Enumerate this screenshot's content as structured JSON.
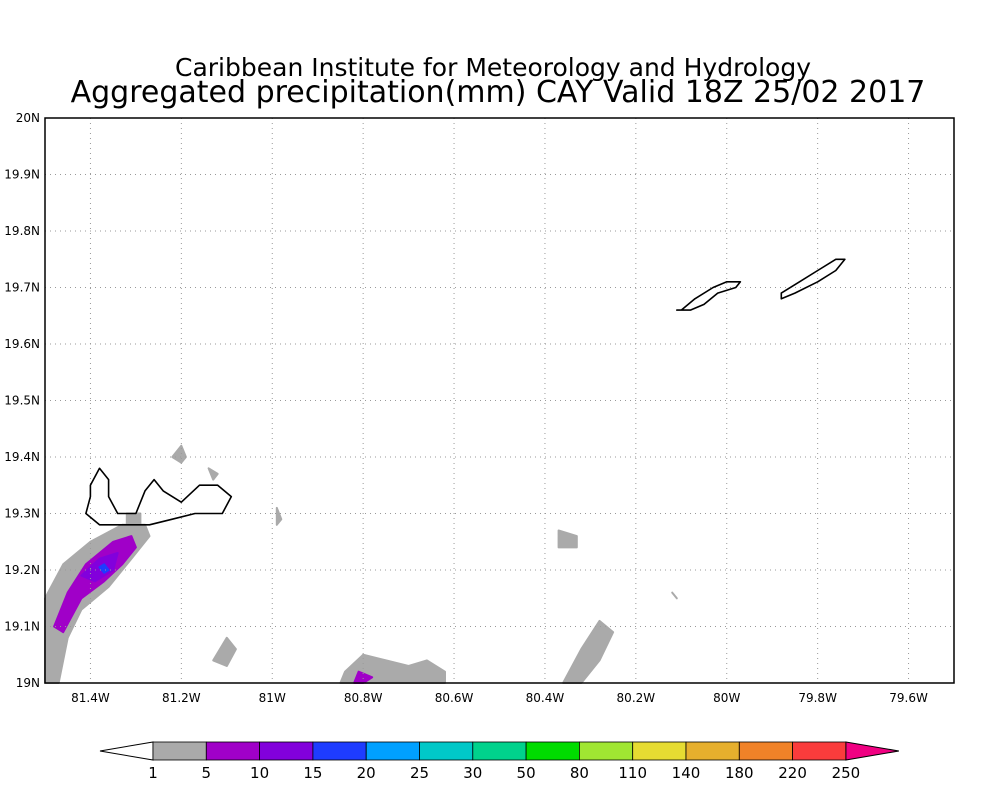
{
  "title": {
    "line1": "Caribbean Institute for Meteorology and Hydrology",
    "line2": "Aggregated precipitation(mm) CAY Valid 18Z 25/02 2017"
  },
  "map": {
    "lon_range": [
      -81.5,
      -79.5
    ],
    "lat_range": [
      19.0,
      20.0
    ],
    "grid": "dotted",
    "lat_ticks": [
      {
        "value": 19.0,
        "label": "19N"
      },
      {
        "value": 19.1,
        "label": "19.1N"
      },
      {
        "value": 19.2,
        "label": "19.2N"
      },
      {
        "value": 19.3,
        "label": "19.3N"
      },
      {
        "value": 19.4,
        "label": "19.4N"
      },
      {
        "value": 19.5,
        "label": "19.5N"
      },
      {
        "value": 19.6,
        "label": "19.6N"
      },
      {
        "value": 19.7,
        "label": "19.7N"
      },
      {
        "value": 19.8,
        "label": "19.8N"
      },
      {
        "value": 19.9,
        "label": "19.9N"
      },
      {
        "value": 20.0,
        "label": "20N"
      }
    ],
    "lon_ticks": [
      {
        "value": -81.4,
        "label": "81.4W"
      },
      {
        "value": -81.2,
        "label": "81.2W"
      },
      {
        "value": -81.0,
        "label": "81W"
      },
      {
        "value": -80.8,
        "label": "80.8W"
      },
      {
        "value": -80.6,
        "label": "80.6W"
      },
      {
        "value": -80.4,
        "label": "80.4W"
      },
      {
        "value": -80.2,
        "label": "80.2W"
      },
      {
        "value": -80.0,
        "label": "80W"
      },
      {
        "value": -79.8,
        "label": "79.8W"
      },
      {
        "value": -79.6,
        "label": "79.6W"
      }
    ],
    "islands": [
      {
        "name": "grand-cayman",
        "points": [
          [
            -81.4,
            19.35
          ],
          [
            -81.38,
            19.38
          ],
          [
            -81.36,
            19.36
          ],
          [
            -81.36,
            19.33
          ],
          [
            -81.34,
            19.3
          ],
          [
            -81.3,
            19.3
          ],
          [
            -81.28,
            19.34
          ],
          [
            -81.26,
            19.36
          ],
          [
            -81.24,
            19.34
          ],
          [
            -81.2,
            19.32
          ],
          [
            -81.16,
            19.35
          ],
          [
            -81.12,
            19.35
          ],
          [
            -81.09,
            19.33
          ],
          [
            -81.11,
            19.3
          ],
          [
            -81.17,
            19.3
          ],
          [
            -81.22,
            19.29
          ],
          [
            -81.27,
            19.28
          ],
          [
            -81.33,
            19.28
          ],
          [
            -81.38,
            19.28
          ],
          [
            -81.41,
            19.3
          ],
          [
            -81.4,
            19.33
          ]
        ]
      },
      {
        "name": "little-cayman",
        "points": [
          [
            -80.1,
            19.66
          ],
          [
            -80.07,
            19.68
          ],
          [
            -80.03,
            19.7
          ],
          [
            -80.0,
            19.71
          ],
          [
            -79.97,
            19.71
          ],
          [
            -79.98,
            19.7
          ],
          [
            -80.02,
            19.69
          ],
          [
            -80.05,
            19.67
          ],
          [
            -80.08,
            19.66
          ],
          [
            -80.11,
            19.66
          ]
        ]
      },
      {
        "name": "cayman-brac",
        "points": [
          [
            -79.88,
            19.69
          ],
          [
            -79.84,
            19.71
          ],
          [
            -79.8,
            19.73
          ],
          [
            -79.76,
            19.75
          ],
          [
            -79.74,
            19.75
          ],
          [
            -79.76,
            19.73
          ],
          [
            -79.8,
            19.71
          ],
          [
            -79.85,
            19.69
          ],
          [
            -79.88,
            19.68
          ]
        ]
      }
    ],
    "precip_areas": [
      {
        "level": "1-5",
        "color": "#aaaaaa",
        "points": [
          [
            -81.5,
            19.0
          ],
          [
            -81.5,
            19.15
          ],
          [
            -81.46,
            19.21
          ],
          [
            -81.4,
            19.25
          ],
          [
            -81.33,
            19.28
          ],
          [
            -81.28,
            19.28
          ],
          [
            -81.27,
            19.26
          ],
          [
            -81.31,
            19.22
          ],
          [
            -81.36,
            19.17
          ],
          [
            -81.42,
            19.13
          ],
          [
            -81.45,
            19.08
          ],
          [
            -81.47,
            19.0
          ]
        ]
      },
      {
        "level": "5-10",
        "color": "#a000c8",
        "points": [
          [
            -81.48,
            19.1
          ],
          [
            -81.45,
            19.16
          ],
          [
            -81.41,
            19.21
          ],
          [
            -81.35,
            19.25
          ],
          [
            -81.31,
            19.26
          ],
          [
            -81.3,
            19.24
          ],
          [
            -81.33,
            19.21
          ],
          [
            -81.37,
            19.18
          ],
          [
            -81.42,
            19.15
          ],
          [
            -81.46,
            19.09
          ]
        ]
      },
      {
        "level": "10-15",
        "color": "#8200dc",
        "points": [
          [
            -81.42,
            19.19
          ],
          [
            -81.38,
            19.22
          ],
          [
            -81.34,
            19.23
          ],
          [
            -81.35,
            19.2
          ],
          [
            -81.39,
            19.18
          ]
        ]
      },
      {
        "level": "15-20",
        "color": "#1e3cff",
        "points": [
          [
            -81.38,
            19.205
          ],
          [
            -81.37,
            19.21
          ],
          [
            -81.36,
            19.2
          ],
          [
            -81.37,
            19.195
          ]
        ]
      },
      {
        "level": "1-5",
        "color": "#aaaaaa",
        "points": [
          [
            -81.32,
            19.28
          ],
          [
            -81.29,
            19.28
          ],
          [
            -81.29,
            19.3
          ],
          [
            -81.32,
            19.3
          ]
        ]
      },
      {
        "level": "1-5",
        "color": "#aaaaaa",
        "points": [
          [
            -81.22,
            19.4
          ],
          [
            -81.2,
            19.42
          ],
          [
            -81.19,
            19.4
          ],
          [
            -81.2,
            19.39
          ]
        ]
      },
      {
        "level": "1-5",
        "color": "#aaaaaa",
        "points": [
          [
            -81.14,
            19.38
          ],
          [
            -81.13,
            19.36
          ],
          [
            -81.12,
            19.37
          ]
        ]
      },
      {
        "level": "1-5",
        "color": "#aaaaaa",
        "points": [
          [
            -80.99,
            19.31
          ],
          [
            -80.98,
            19.29
          ],
          [
            -80.99,
            19.28
          ]
        ]
      },
      {
        "level": "1-5",
        "color": "#aaaaaa",
        "points": [
          [
            -81.13,
            19.04
          ],
          [
            -81.1,
            19.08
          ],
          [
            -81.08,
            19.06
          ],
          [
            -81.1,
            19.03
          ]
        ]
      },
      {
        "level": "1-5",
        "color": "#aaaaaa",
        "points": [
          [
            -80.85,
            19.0
          ],
          [
            -80.84,
            19.02
          ],
          [
            -80.8,
            19.05
          ],
          [
            -80.75,
            19.04
          ],
          [
            -80.7,
            19.03
          ],
          [
            -80.66,
            19.04
          ],
          [
            -80.62,
            19.02
          ],
          [
            -80.62,
            19.0
          ]
        ]
      },
      {
        "level": "5-10",
        "color": "#a000c8",
        "points": [
          [
            -80.82,
            19.0
          ],
          [
            -80.81,
            19.02
          ],
          [
            -80.78,
            19.01
          ],
          [
            -80.8,
            19.0
          ]
        ]
      },
      {
        "level": "1-5",
        "color": "#aaaaaa",
        "points": [
          [
            -80.37,
            19.27
          ],
          [
            -80.33,
            19.26
          ],
          [
            -80.33,
            19.24
          ],
          [
            -80.37,
            19.24
          ]
        ]
      },
      {
        "level": "1-5",
        "color": "#aaaaaa",
        "points": [
          [
            -80.12,
            19.16
          ],
          [
            -80.11,
            19.15
          ]
        ]
      },
      {
        "level": "1-5",
        "color": "#aaaaaa",
        "points": [
          [
            -80.36,
            19.0
          ],
          [
            -80.32,
            19.06
          ],
          [
            -80.28,
            19.11
          ],
          [
            -80.25,
            19.09
          ],
          [
            -80.28,
            19.04
          ],
          [
            -80.32,
            19.0
          ]
        ]
      }
    ]
  },
  "colorbar": {
    "labels": [
      "1",
      "5",
      "10",
      "15",
      "20",
      "25",
      "30",
      "50",
      "80",
      "110",
      "140",
      "180",
      "220",
      "250"
    ],
    "low_color": "#ffffff",
    "colors": [
      "#aaaaaa",
      "#a000c8",
      "#8200dc",
      "#1e3cff",
      "#00a0ff",
      "#00c8c8",
      "#00d28c",
      "#00dc00",
      "#a0e632",
      "#e6dc32",
      "#e6af2d",
      "#f08228",
      "#fa3c3c"
    ],
    "high_color": "#f00082"
  }
}
